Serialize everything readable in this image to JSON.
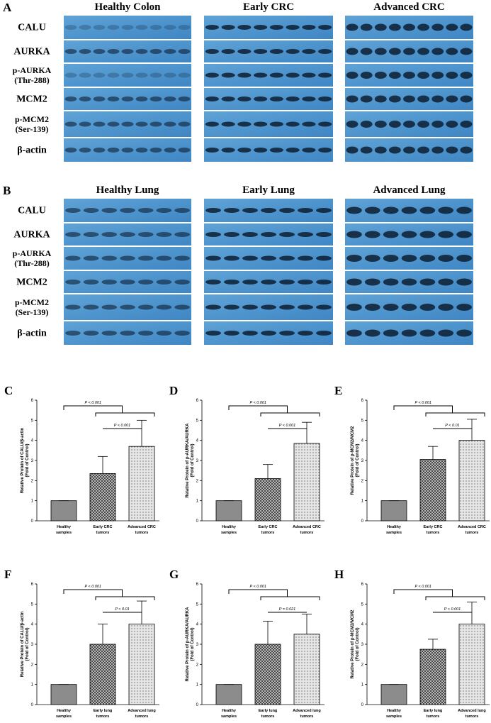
{
  "blots": [
    {
      "letter": "A",
      "columns": [
        "Healthy Colon",
        "Early CRC",
        "Advanced CRC"
      ],
      "rows": [
        [
          "CALU"
        ],
        [
          "AURKA"
        ],
        [
          "p-AURKA",
          "(Thr-288)"
        ],
        [
          "MCM2"
        ],
        [
          "p-MCM2",
          "(Ser-139)"
        ],
        [
          "β-actin"
        ]
      ]
    },
    {
      "letter": "B",
      "columns": [
        "Healthy Lung",
        "Early Lung",
        "Advanced Lung"
      ],
      "rows": [
        [
          "CALU"
        ],
        [
          "AURKA"
        ],
        [
          "p-AURKA",
          "(Thr-288)"
        ],
        [
          "MCM2"
        ],
        [
          "p-MCM2",
          "(Ser-139)"
        ],
        [
          "β-actin"
        ]
      ]
    }
  ],
  "chart_data": [
    {
      "type": "bar",
      "panel": "C",
      "ylabel": [
        "Relative Protein of CALU/β-actin",
        "(Fold of Control)"
      ],
      "categories": [
        [
          "Healthy",
          "samples"
        ],
        [
          "Early CRC",
          "tumors"
        ],
        [
          "Advanced CRC",
          "tumors"
        ]
      ],
      "values": [
        1,
        2.35,
        3.7
      ],
      "errors": [
        0,
        0.85,
        1.3
      ],
      "colors": [
        "#8c8c8c",
        "#3a3a3a",
        "#e6e6e6"
      ],
      "ylim": [
        0,
        6
      ],
      "yticks": [
        0,
        1,
        2,
        3,
        4,
        5,
        6
      ],
      "annotations": [
        "P < 0.001",
        "P < 0.001"
      ]
    },
    {
      "type": "bar",
      "panel": "D",
      "ylabel": [
        "Relative Protein of p-AURKA/AURKA",
        "(Fold of Control)"
      ],
      "categories": [
        [
          "Healthy",
          "samples"
        ],
        [
          "Early CRC",
          "tumors"
        ],
        [
          "Advanced CRC",
          "tumors"
        ]
      ],
      "values": [
        1,
        2.1,
        3.85
      ],
      "errors": [
        0,
        0.7,
        1.05
      ],
      "colors": [
        "#8c8c8c",
        "#3a3a3a",
        "#e6e6e6"
      ],
      "ylim": [
        0,
        6
      ],
      "yticks": [
        0,
        1,
        2,
        3,
        4,
        5,
        6
      ],
      "annotations": [
        "P < 0.001",
        "P < 0.001"
      ]
    },
    {
      "type": "bar",
      "panel": "E",
      "ylabel": [
        "Relative Protein of p-MCM2/MCM2",
        "(Fold of Control)"
      ],
      "categories": [
        [
          "Healthy",
          "samples"
        ],
        [
          "Early CRC",
          "tumors"
        ],
        [
          "Advanced CRC",
          "tumors"
        ]
      ],
      "values": [
        1,
        3.05,
        4.0
      ],
      "errors": [
        0,
        0.65,
        1.05
      ],
      "colors": [
        "#8c8c8c",
        "#3a3a3a",
        "#e6e6e6"
      ],
      "ylim": [
        0,
        6
      ],
      "yticks": [
        0,
        1,
        2,
        3,
        4,
        5,
        6
      ],
      "annotations": [
        "P < 0.001",
        "P < 0.01"
      ]
    },
    {
      "type": "bar",
      "panel": "F",
      "ylabel": [
        "Relative Protein of CALU/β-actin",
        "(Fold of Control)"
      ],
      "categories": [
        [
          "Healthy",
          "samples"
        ],
        [
          "Early lung",
          "tumors"
        ],
        [
          "Advanced lung",
          "tumors"
        ]
      ],
      "values": [
        1,
        3.0,
        4.0
      ],
      "errors": [
        0,
        1.0,
        1.15
      ],
      "colors": [
        "#8c8c8c",
        "#3a3a3a",
        "#e6e6e6"
      ],
      "ylim": [
        0,
        6
      ],
      "yticks": [
        0,
        1,
        2,
        3,
        4,
        5,
        6
      ],
      "annotations": [
        "P < 0.001",
        "P < 0.01"
      ]
    },
    {
      "type": "bar",
      "panel": "G",
      "ylabel": [
        "Relative Protein of p-AURKA/AURKA",
        "(Fold of Control)"
      ],
      "categories": [
        [
          "Healthy",
          "samples"
        ],
        [
          "Early lung",
          "tumors"
        ],
        [
          "Advanced lung",
          "tumors"
        ]
      ],
      "values": [
        1,
        3.0,
        3.5
      ],
      "errors": [
        0,
        1.15,
        1.0
      ],
      "colors": [
        "#8c8c8c",
        "#3a3a3a",
        "#e6e6e6"
      ],
      "ylim": [
        0,
        6
      ],
      "yticks": [
        0,
        1,
        2,
        3,
        4,
        5,
        6
      ],
      "annotations": [
        "P < 0.001",
        "P = 0.021"
      ]
    },
    {
      "type": "bar",
      "panel": "H",
      "ylabel": [
        "Relative Protein of p-MCM2/MCM2",
        "(Fold of Control)"
      ],
      "categories": [
        [
          "Healthy",
          "samples"
        ],
        [
          "Early lung",
          "tumors"
        ],
        [
          "Advanced lung",
          "tumors"
        ]
      ],
      "values": [
        1,
        2.75,
        4.0
      ],
      "errors": [
        0,
        0.5,
        1.1
      ],
      "colors": [
        "#8c8c8c",
        "#3a3a3a",
        "#e6e6e6"
      ],
      "ylim": [
        0,
        6
      ],
      "yticks": [
        0,
        1,
        2,
        3,
        4,
        5,
        6
      ],
      "annotations": [
        "P < 0.001",
        "P < 0.001"
      ]
    }
  ]
}
